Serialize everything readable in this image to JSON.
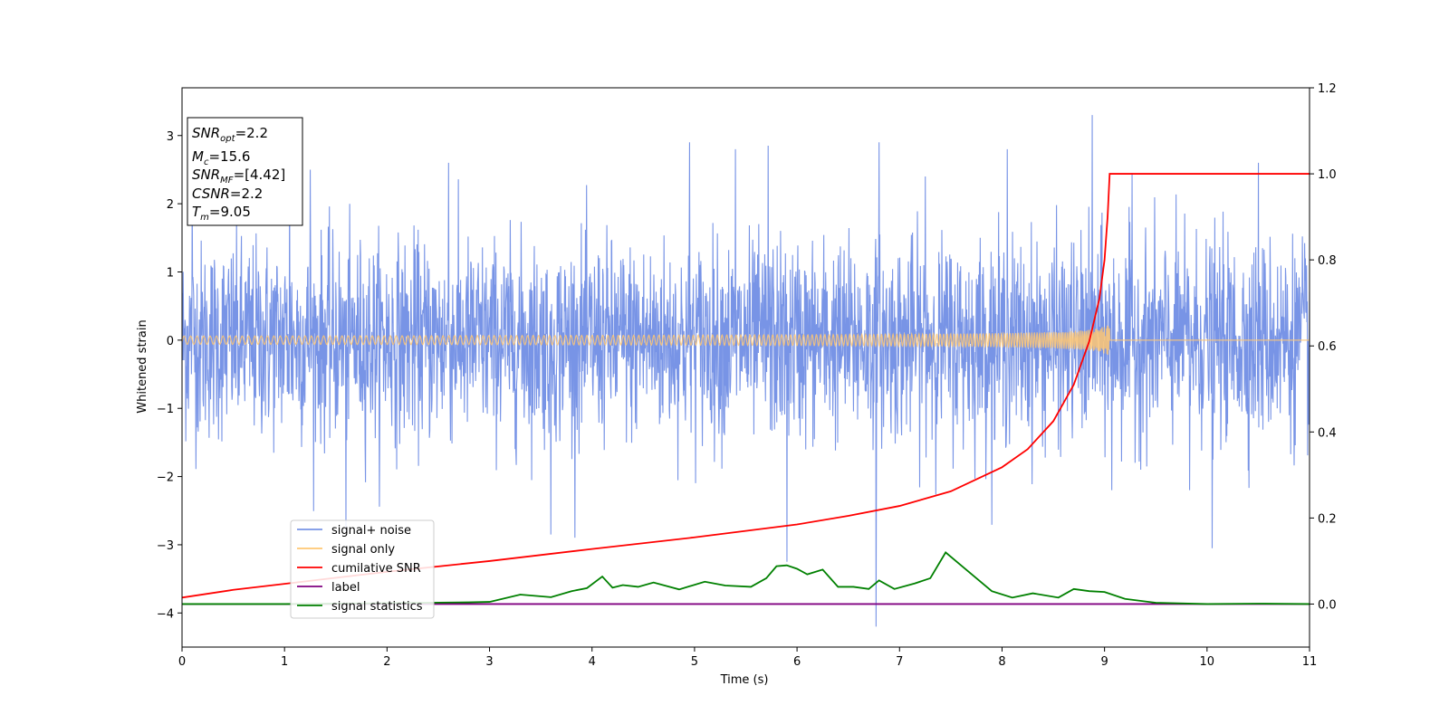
{
  "chart_data": {
    "type": "line",
    "xlabel": "Time (s)",
    "ylabel": "Whitened strain",
    "xlim": [
      0,
      11
    ],
    "ylim_left": [
      -4.5,
      3.7
    ],
    "ylim_right": [
      -0.1,
      1.2
    ],
    "x_ticks": [
      "0",
      "1",
      "2",
      "3",
      "4",
      "5",
      "6",
      "7",
      "8",
      "9",
      "10",
      "11"
    ],
    "y_left_ticks": [
      "−4",
      "−3",
      "−2",
      "−1",
      "0",
      "1",
      "2",
      "3"
    ],
    "y_right_ticks": [
      "0.0",
      "0.2",
      "0.4",
      "0.6",
      "0.8",
      "1.0",
      "1.2"
    ],
    "info_box": {
      "snr_opt": {
        "base": "SNR",
        "sub": "opt",
        "value": "=2.2"
      },
      "mc": {
        "base": "M",
        "sub": "c",
        "value": "=15.6"
      },
      "snr_mf": {
        "base": "SNR",
        "sub": "MF",
        "value": "=[4.42]"
      },
      "csnr": {
        "base": "CSNR",
        "value": "=2.2"
      },
      "tm": {
        "base": "T",
        "sub": "m",
        "value": "=9.05"
      }
    },
    "legend": [
      {
        "label": "signal+ noise",
        "color": "#7894e6"
      },
      {
        "label": "signal only",
        "color": "#ffc772"
      },
      {
        "label": "cumilative SNR",
        "color": "#ff0000"
      },
      {
        "label": "label",
        "color": "#800080"
      },
      {
        "label": "signal statistics",
        "color": "#008000"
      }
    ],
    "series": [
      {
        "name": "signal+ noise",
        "axis": "left",
        "color": "#7894e6",
        "noise_std": 0.72,
        "spikes": [
          [
            0.1,
            2.2
          ],
          [
            1.05,
            2.5
          ],
          [
            1.25,
            2.5
          ],
          [
            1.6,
            -2.8
          ],
          [
            2.6,
            2.6
          ],
          [
            3.6,
            -2.85
          ],
          [
            4.95,
            2.9
          ],
          [
            5.4,
            2.8
          ],
          [
            5.72,
            2.85
          ],
          [
            5.9,
            -3.25
          ],
          [
            6.77,
            -4.2
          ],
          [
            6.8,
            2.9
          ],
          [
            7.25,
            2.4
          ],
          [
            8.05,
            2.8
          ],
          [
            8.88,
            3.3
          ],
          [
            9.07,
            -2.2
          ],
          [
            9.27,
            2.45
          ],
          [
            9.83,
            -2.2
          ],
          [
            10.05,
            -3.05
          ],
          [
            10.5,
            2.6
          ]
        ]
      },
      {
        "name": "signal only",
        "axis": "left",
        "color": "#ffc772",
        "merger_time": 9.05,
        "peak_amplitude": 0.28
      },
      {
        "name": "cumilative SNR",
        "axis": "right",
        "color": "#ff0000",
        "x": [
          0,
          0.5,
          1,
          2,
          3,
          4,
          5,
          6,
          6.5,
          7,
          7.5,
          8,
          8.25,
          8.5,
          8.7,
          8.85,
          8.95,
          9.0,
          9.03,
          9.05,
          11
        ],
        "y": [
          0.015,
          0.033,
          0.047,
          0.075,
          0.1,
          0.128,
          0.155,
          0.185,
          0.205,
          0.228,
          0.262,
          0.318,
          0.36,
          0.425,
          0.51,
          0.61,
          0.71,
          0.8,
          0.9,
          1.0,
          1.0
        ]
      },
      {
        "name": "label",
        "axis": "right",
        "color": "#800080",
        "x": [
          0,
          11
        ],
        "y": [
          0,
          0
        ]
      },
      {
        "name": "signal statistics",
        "axis": "right",
        "color": "#008000",
        "x": [
          0,
          1,
          2,
          2.8,
          3.0,
          3.3,
          3.6,
          3.8,
          3.95,
          4.1,
          4.2,
          4.3,
          4.45,
          4.6,
          4.85,
          5.1,
          5.3,
          5.55,
          5.7,
          5.8,
          5.9,
          6.0,
          6.1,
          6.25,
          6.4,
          6.55,
          6.7,
          6.8,
          6.95,
          7.15,
          7.3,
          7.45,
          7.6,
          7.75,
          7.9,
          8.1,
          8.3,
          8.55,
          8.7,
          8.85,
          9.0,
          9.2,
          9.5,
          10,
          10.5,
          11
        ],
        "y": [
          0.0,
          0.0,
          0.002,
          0.004,
          0.005,
          0.022,
          0.016,
          0.03,
          0.037,
          0.064,
          0.038,
          0.044,
          0.04,
          0.05,
          0.034,
          0.052,
          0.043,
          0.04,
          0.06,
          0.088,
          0.09,
          0.082,
          0.069,
          0.08,
          0.04,
          0.04,
          0.035,
          0.055,
          0.035,
          0.048,
          0.06,
          0.12,
          0.09,
          0.06,
          0.03,
          0.015,
          0.025,
          0.015,
          0.035,
          0.03,
          0.028,
          0.012,
          0.003,
          0.0,
          0.001,
          0.0
        ]
      }
    ]
  }
}
